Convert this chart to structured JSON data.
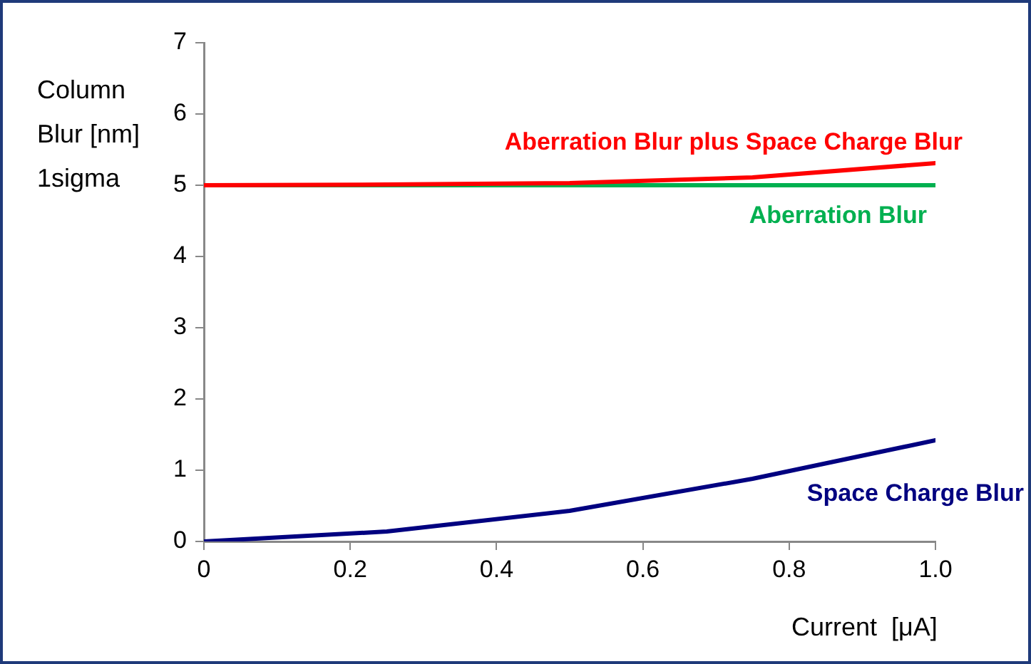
{
  "chart_data": {
    "type": "line",
    "xlabel": "Current  [μA]",
    "ylabel": "Column Blur [nm] 1sigma",
    "x": [
      0,
      0.25,
      0.5,
      0.75,
      1.0
    ],
    "xlim": [
      0,
      1.0
    ],
    "xticks": [
      0,
      0.2,
      0.4,
      0.6,
      0.8,
      {
        "value": 1.0,
        "label": "1.0"
      }
    ],
    "ylim": [
      0,
      7
    ],
    "yticks": [
      0,
      1,
      2,
      3,
      4,
      5,
      6,
      7
    ],
    "series": [
      {
        "name": "Aberration Blur plus Space Charge Blur",
        "color": "#ff0000",
        "values": [
          5,
          5.01,
          5.03,
          5.11,
          5.31
        ]
      },
      {
        "name": "Aberration Blur",
        "color": "#00b050",
        "values": [
          5,
          5,
          5,
          5,
          5
        ]
      },
      {
        "name": "Space Charge Blur",
        "color": "#000080",
        "values": [
          0,
          0.14,
          0.43,
          0.88,
          1.42
        ]
      }
    ],
    "grid": false,
    "legend": false,
    "marker": "none",
    "line_style": "solid"
  }
}
